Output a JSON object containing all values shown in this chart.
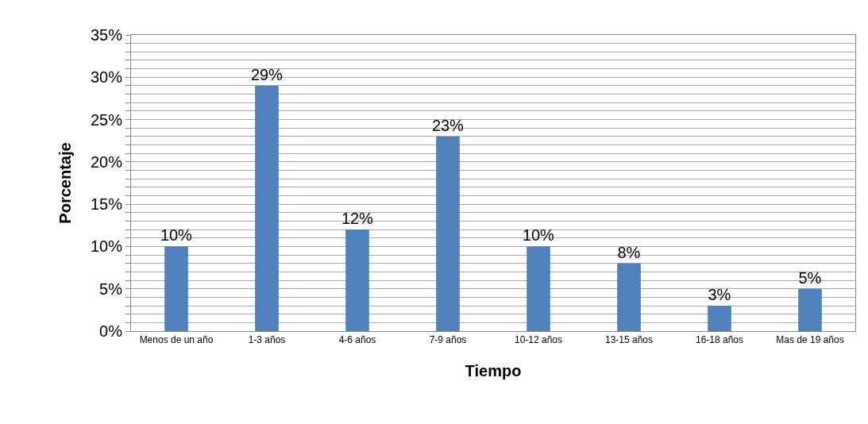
{
  "chart_data": {
    "type": "bar",
    "xlabel": "Tiempo",
    "ylabel": "Porcentaje",
    "categories": [
      "Menos de un año",
      "1-3 años",
      "4-6 años",
      "7-9 años",
      "10-12 años",
      "13-15 años",
      "16-18 años",
      "Mas de 19 años"
    ],
    "values": [
      10,
      29,
      12,
      23,
      10,
      8,
      3,
      5
    ],
    "value_labels": [
      "10%",
      "29%",
      "12%",
      "23%",
      "10%",
      "8%",
      "3%",
      "5%"
    ],
    "color": "#4f81bd",
    "ylim": [
      0,
      35
    ],
    "yticks": [
      {
        "value": 0,
        "label": "0%"
      },
      {
        "value": 1,
        "label": null
      },
      {
        "value": 2,
        "label": null
      },
      {
        "value": 3,
        "label": null
      },
      {
        "value": 4,
        "label": null
      },
      {
        "value": 5,
        "label": "5%"
      },
      {
        "value": 6,
        "label": null
      },
      {
        "value": 7,
        "label": null
      },
      {
        "value": 8,
        "label": null
      },
      {
        "value": 9,
        "label": null
      },
      {
        "value": 10,
        "label": "10%"
      },
      {
        "value": 11,
        "label": null
      },
      {
        "value": 12,
        "label": null
      },
      {
        "value": 13,
        "label": null
      },
      {
        "value": 14,
        "label": null
      },
      {
        "value": 15,
        "label": "15%"
      },
      {
        "value": 16,
        "label": null
      },
      {
        "value": 17,
        "label": null
      },
      {
        "value": 18,
        "label": null
      },
      {
        "value": 19,
        "label": null
      },
      {
        "value": 20,
        "label": "20%"
      },
      {
        "value": 21,
        "label": null
      },
      {
        "value": 22,
        "label": null
      },
      {
        "value": 23,
        "label": null
      },
      {
        "value": 24,
        "label": null
      },
      {
        "value": 25,
        "label": "25%"
      },
      {
        "value": 26,
        "label": null
      },
      {
        "value": 27,
        "label": null
      },
      {
        "value": 28,
        "label": null
      },
      {
        "value": 29,
        "label": null
      },
      {
        "value": 30,
        "label": "30%"
      },
      {
        "value": 31,
        "label": null
      },
      {
        "value": 32,
        "label": null
      },
      {
        "value": 33,
        "label": null
      },
      {
        "value": 34,
        "label": null
      },
      {
        "value": 35,
        "label": "35%"
      }
    ],
    "grid": "y"
  }
}
